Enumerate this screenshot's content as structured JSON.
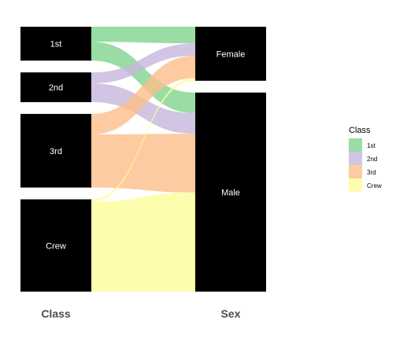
{
  "chart_data": {
    "type": "alluvial",
    "axes": [
      {
        "key": "class",
        "label": "Class"
      },
      {
        "key": "sex",
        "label": "Sex"
      }
    ],
    "nodes": {
      "class": [
        {
          "label": "1st",
          "value": 325
        },
        {
          "label": "2nd",
          "value": 285
        },
        {
          "label": "3rd",
          "value": 706
        },
        {
          "label": "Crew",
          "value": 885
        }
      ],
      "sex": [
        {
          "label": "Female",
          "value": 470
        },
        {
          "label": "Male",
          "value": 1731
        }
      ]
    },
    "flows": [
      {
        "class": "1st",
        "sex": "Female",
        "value": 145
      },
      {
        "class": "1st",
        "sex": "Male",
        "value": 180
      },
      {
        "class": "2nd",
        "sex": "Female",
        "value": 106
      },
      {
        "class": "2nd",
        "sex": "Male",
        "value": 179
      },
      {
        "class": "3rd",
        "sex": "Female",
        "value": 196
      },
      {
        "class": "3rd",
        "sex": "Male",
        "value": 510
      },
      {
        "class": "Crew",
        "sex": "Female",
        "value": 23
      },
      {
        "class": "Crew",
        "sex": "Male",
        "value": 862
      }
    ],
    "fill": "class",
    "colors": {
      "1st": "#7fd58f",
      "2nd": "#c7b6dc",
      "3rd": "#fdbe89",
      "Crew": "#fdfe99"
    },
    "legend": {
      "title": "Class",
      "position": "right",
      "entries": [
        "1st",
        "2nd",
        "3rd",
        "Crew"
      ]
    },
    "grid": false
  }
}
